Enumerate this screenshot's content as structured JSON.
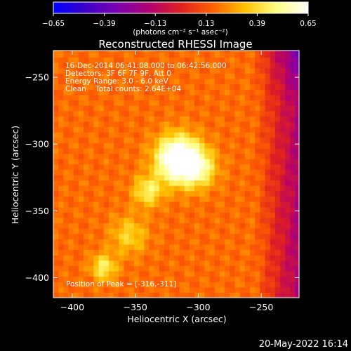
{
  "chart_data": {
    "type": "heatmap",
    "title": "Reconstructed RHESSI Image",
    "xlabel": "Heliocentric X (arcsec)",
    "ylabel": "Heliocentric Y (arcsec)",
    "xlim": [
      -415,
      -220
    ],
    "ylim": [
      -415,
      -230
    ],
    "x_ticks": [
      -400,
      -350,
      -300,
      -250
    ],
    "y_ticks": [
      -250,
      -300,
      -350,
      -400
    ],
    "x_tick_labels": [
      "−400",
      "−350",
      "−300",
      "−250"
    ],
    "y_tick_labels": [
      "−250",
      "−300",
      "−350",
      "−400"
    ],
    "colorbar": {
      "min": -0.65,
      "max": 0.65,
      "ticks": [
        -0.65,
        -0.39,
        -0.13,
        0.13,
        0.39,
        0.65
      ],
      "tick_labels": [
        "−0.65",
        "−0.39",
        "−0.13",
        "0.13",
        "0.39",
        "0.65"
      ],
      "units_label": "(photons cm⁻² s⁻¹ asec⁻²)",
      "colors": [
        "#0000ff",
        "#3a00c8",
        "#7a00b0",
        "#b00070",
        "#e02020",
        "#ff6000",
        "#ffc000",
        "#ffff80",
        "#ffffff"
      ]
    },
    "annotations": [
      "16-Dec-2014 06:41:08.000 to 06:42:56.000",
      "Detectors: 3F 6F 7F 9F, Att 0",
      "Energy Range: 3.0 - 6.0 keV",
      "Clean    Total counts: 2.64E+04"
    ],
    "peak_label": "Position of Peak = [-316,-311]",
    "peak": {
      "x": -316,
      "y": -311,
      "value": 0.65
    },
    "sources": [
      {
        "x": -316,
        "y": -311,
        "peak": 0.65,
        "sigma": 12
      },
      {
        "x": -300,
        "y": -318,
        "peak": 0.3,
        "sigma": 10
      },
      {
        "x": -340,
        "y": -335,
        "peak": 0.28,
        "sigma": 8
      },
      {
        "x": -375,
        "y": -392,
        "peak": 0.28,
        "sigma": 7
      },
      {
        "x": -355,
        "y": -368,
        "peak": 0.2,
        "sigma": 10
      }
    ],
    "background_level": 0.18
  },
  "footer": {
    "timestamp": "20-May-2022 16:14"
  }
}
